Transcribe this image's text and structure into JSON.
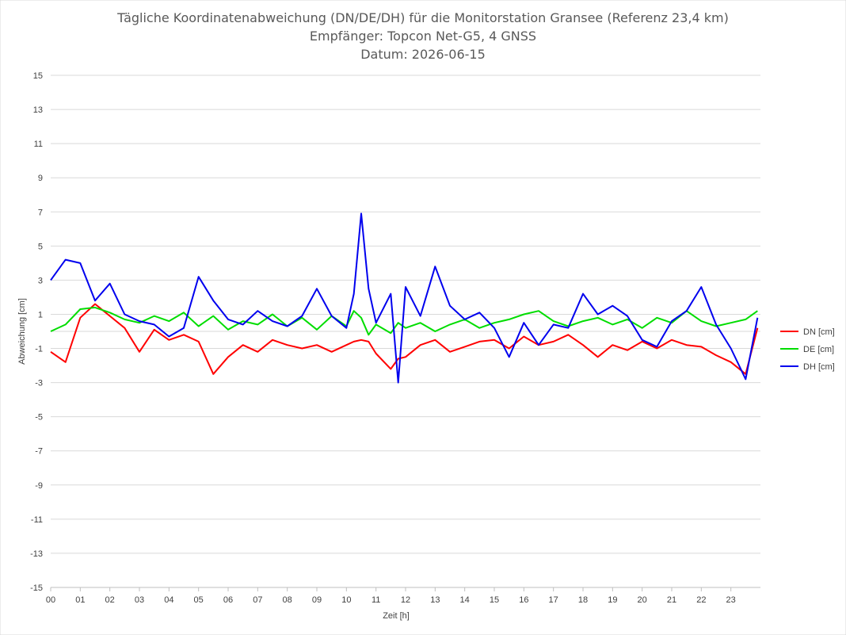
{
  "chart_data": {
    "type": "line",
    "title": "Tägliche Koordinatenabweichung (DN/DE/DH) für die Monitorstation Gransee (Referenz 23,4 km)",
    "subtitle": "Empfänger: Topcon Net-G5, 4 GNSS",
    "date_line": "Datum: 2026-06-15",
    "xlabel": "Zeit [h]",
    "ylabel": "Abweichung [cm]",
    "xlim": [
      0,
      24
    ],
    "ylim": [
      -15,
      15
    ],
    "y_ticks": [
      15,
      13,
      11,
      9,
      7,
      5,
      3,
      1,
      -1,
      -3,
      -5,
      -7,
      -9,
      -11,
      -13,
      -15
    ],
    "y_tick_labels": [
      "15",
      "13",
      "11",
      "9",
      "7",
      "5",
      "3",
      "1",
      "-1",
      "-3",
      "-5",
      "-7",
      "-9",
      "-11",
      "-13",
      "-15"
    ],
    "x_ticks": [
      0,
      1,
      2,
      3,
      4,
      5,
      6,
      7,
      8,
      9,
      10,
      11,
      12,
      13,
      14,
      15,
      16,
      17,
      18,
      19,
      20,
      21,
      22,
      23
    ],
    "x_tick_labels": [
      "00",
      "01",
      "02",
      "03",
      "04",
      "05",
      "06",
      "07",
      "08",
      "09",
      "10",
      "11",
      "12",
      "13",
      "14",
      "15",
      "16",
      "17",
      "18",
      "19",
      "20",
      "21",
      "22",
      "23"
    ],
    "grid": "horizontal",
    "legend_position": "right",
    "x_hours": [
      0,
      0.5,
      1,
      1.5,
      2,
      2.5,
      3,
      3.5,
      4,
      4.5,
      5,
      5.5,
      6,
      6.5,
      7,
      7.5,
      8,
      8.5,
      9,
      9.5,
      10,
      10.25,
      10.5,
      10.75,
      11,
      11.5,
      11.75,
      12,
      12.5,
      13,
      13.5,
      14,
      14.5,
      15,
      15.5,
      16,
      16.5,
      17,
      17.5,
      18,
      18.5,
      19,
      19.5,
      20,
      20.5,
      21,
      21.5,
      22,
      22.5,
      23,
      23.5,
      23.9
    ],
    "series": [
      {
        "name": "DN [cm]",
        "color": "#ff0000",
        "values": [
          -1.2,
          -1.8,
          0.8,
          1.6,
          0.9,
          0.2,
          -1.2,
          0.1,
          -0.5,
          -0.2,
          -0.6,
          -2.5,
          -1.5,
          -0.8,
          -1.2,
          -0.5,
          -0.8,
          -1.0,
          -0.8,
          -1.2,
          -0.8,
          -0.6,
          -0.5,
          -0.6,
          -1.3,
          -2.2,
          -1.6,
          -1.5,
          -0.8,
          -0.5,
          -1.2,
          -0.9,
          -0.6,
          -0.5,
          -1.0,
          -0.3,
          -0.8,
          -0.6,
          -0.2,
          -0.8,
          -1.5,
          -0.8,
          -1.1,
          -0.6,
          -1.0,
          -0.5,
          -0.8,
          -0.9,
          -1.4,
          -1.8,
          -2.5,
          0.2
        ]
      },
      {
        "name": "DE [cm]",
        "color": "#00dd00",
        "values": [
          0.0,
          0.4,
          1.3,
          1.4,
          1.1,
          0.7,
          0.5,
          0.9,
          0.6,
          1.1,
          0.3,
          0.9,
          0.1,
          0.6,
          0.4,
          1.0,
          0.3,
          0.8,
          0.1,
          0.9,
          0.3,
          1.2,
          0.8,
          -0.2,
          0.4,
          -0.1,
          0.5,
          0.2,
          0.5,
          0.0,
          0.4,
          0.7,
          0.2,
          0.5,
          0.7,
          1.0,
          1.2,
          0.6,
          0.3,
          0.6,
          0.8,
          0.4,
          0.7,
          0.2,
          0.8,
          0.5,
          1.2,
          0.6,
          0.3,
          0.5,
          0.7,
          1.2
        ]
      },
      {
        "name": "DH [cm]",
        "color": "#0000ee",
        "values": [
          3.0,
          4.2,
          4.0,
          1.8,
          2.8,
          1.0,
          0.6,
          0.4,
          -0.3,
          0.2,
          3.2,
          1.8,
          0.7,
          0.4,
          1.2,
          0.6,
          0.3,
          0.9,
          2.5,
          0.9,
          0.2,
          2.2,
          6.9,
          2.5,
          0.5,
          2.2,
          -3.0,
          2.6,
          0.9,
          3.8,
          1.5,
          0.7,
          1.1,
          0.2,
          -1.5,
          0.5,
          -0.8,
          0.4,
          0.2,
          2.2,
          1.0,
          1.5,
          0.9,
          -0.5,
          -0.9,
          0.6,
          1.2,
          2.6,
          0.4,
          -1.0,
          -2.8,
          0.8
        ]
      }
    ]
  }
}
